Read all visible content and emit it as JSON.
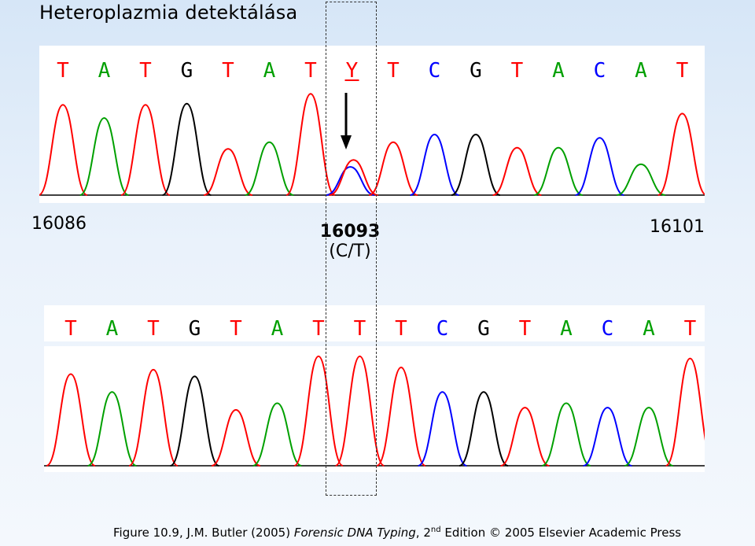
{
  "title": "Heteroplazmia detektálása",
  "top_panel": {
    "bases": [
      "T",
      "A",
      "T",
      "G",
      "T",
      "A",
      "T",
      "Y",
      "T",
      "C",
      "G",
      "T",
      "A",
      "C",
      "A",
      "T"
    ],
    "highlight_index": 7
  },
  "bottom_panel": {
    "bases": [
      "T",
      "A",
      "T",
      "G",
      "T",
      "A",
      "T",
      "T",
      "T",
      "C",
      "G",
      "T",
      "A",
      "C",
      "A",
      "T"
    ],
    "highlight_index": 7
  },
  "colors": {
    "T": "#ff0000",
    "A": "#00a000",
    "C": "#0000ff",
    "G": "#000000",
    "Y": "#ff0000"
  },
  "labels": {
    "left_position": "16086",
    "middle_position": "16093",
    "middle_variant": "(C/T)",
    "right_position": "16101"
  },
  "caption": {
    "figure": "Figure 10.9, J.M. Butler (2005) ",
    "book": "Forensic DNA Typing",
    "edition_prefix": ", 2",
    "edition_sup": "nd",
    "edition_rest": " Edition © 2005 Elsevier Academic Press"
  }
}
